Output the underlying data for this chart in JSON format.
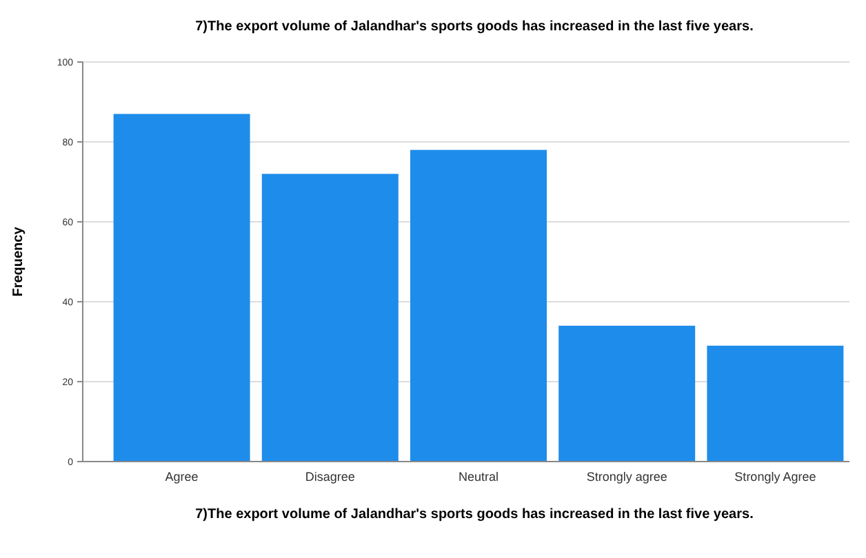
{
  "chart_data": {
    "type": "bar",
    "title": "7)The export volume of Jalandhar's sports goods has increased in the last five years.",
    "xlabel": "7)The export volume of Jalandhar's sports goods has increased in the last five years.",
    "ylabel": "Frequency",
    "categories": [
      "Agree",
      "Disagree",
      "Neutral",
      "Strongly agree",
      "Strongly Agree"
    ],
    "values": [
      87,
      72,
      78,
      34,
      29
    ],
    "color": "#1e8ceb",
    "ylim": [
      0,
      100
    ],
    "yticks": [
      0,
      20,
      40,
      60,
      80,
      100
    ],
    "grid": "y"
  }
}
